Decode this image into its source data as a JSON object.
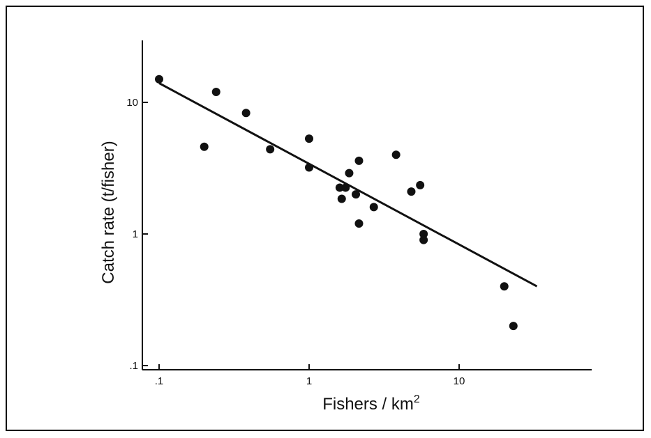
{
  "chart_data": {
    "type": "scatter",
    "title": "",
    "xlabel": "Fishers / km",
    "xlabel_superscript": "2",
    "ylabel": "Catch rate (t/fisher)",
    "x_scale": "log",
    "y_scale": "log",
    "xlim": [
      0.1,
      60
    ],
    "ylim": [
      0.1,
      30
    ],
    "x_ticks": [
      {
        "value": 0.1,
        "label": ".1"
      },
      {
        "value": 1,
        "label": "1"
      },
      {
        "value": 10,
        "label": "10"
      }
    ],
    "y_ticks": [
      {
        "value": 0.1,
        "label": ".1"
      },
      {
        "value": 1,
        "label": "1"
      },
      {
        "value": 10,
        "label": "10"
      }
    ],
    "grid": false,
    "legend": "none",
    "marker_color": "#111111",
    "points": [
      {
        "x": 0.1,
        "y": 15
      },
      {
        "x": 0.2,
        "y": 4.6
      },
      {
        "x": 0.24,
        "y": 12
      },
      {
        "x": 0.38,
        "y": 8.3
      },
      {
        "x": 0.55,
        "y": 4.4
      },
      {
        "x": 1.0,
        "y": 5.3
      },
      {
        "x": 1.0,
        "y": 3.2
      },
      {
        "x": 1.6,
        "y": 2.25
      },
      {
        "x": 1.65,
        "y": 1.85
      },
      {
        "x": 1.75,
        "y": 2.25
      },
      {
        "x": 1.85,
        "y": 2.9
      },
      {
        "x": 2.05,
        "y": 2.0
      },
      {
        "x": 2.15,
        "y": 3.6
      },
      {
        "x": 2.15,
        "y": 1.2
      },
      {
        "x": 2.7,
        "y": 1.6
      },
      {
        "x": 3.8,
        "y": 4.0
      },
      {
        "x": 4.8,
        "y": 2.1
      },
      {
        "x": 5.5,
        "y": 2.35
      },
      {
        "x": 5.8,
        "y": 1.0
      },
      {
        "x": 5.8,
        "y": 0.9
      },
      {
        "x": 20,
        "y": 0.4
      },
      {
        "x": 23,
        "y": 0.2
      }
    ],
    "fit_line": {
      "x": [
        0.1,
        33
      ],
      "y": [
        14,
        0.4
      ]
    }
  }
}
